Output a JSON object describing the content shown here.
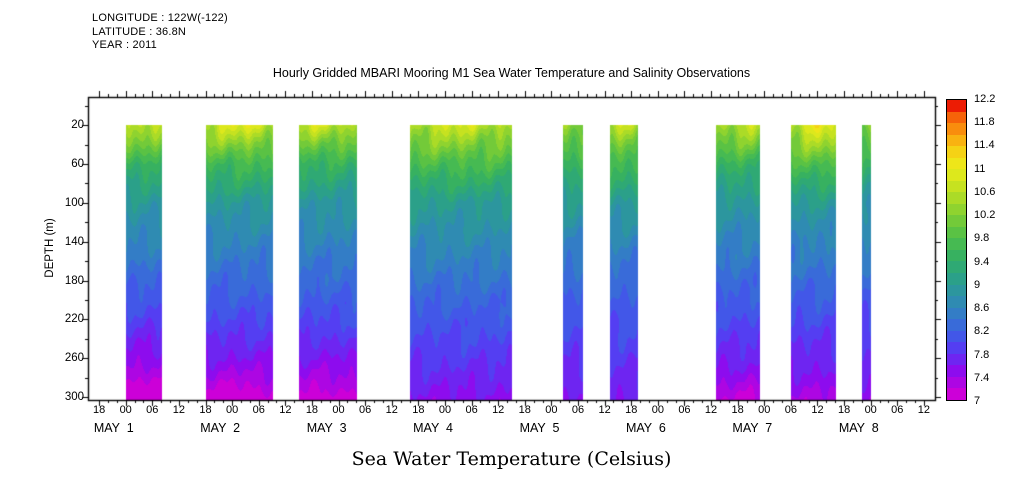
{
  "header": {
    "longitude": "LONGITUDE : 122W(-122)",
    "latitude": "LATITUDE : 36.8N",
    "year": "YEAR : 2011"
  },
  "title": "Hourly Gridded MBARI Mooring M1 Sea Water Temperature and Salinity Observations",
  "bottom_label": "Sea Water Temperature (Celsius)",
  "chart_data": {
    "type": "heatmap",
    "title": "Hourly Gridded MBARI Mooring M1 Sea Water Temperature and Salinity Observations",
    "variable": "Sea Water Temperature (Celsius)",
    "x_axis": {
      "unit": "hours since Apr 30 18:00, 2011",
      "hour_min": 0,
      "hour_max": 186,
      "major_tick_step_hours": 6,
      "minor_tick_step_hours": 2,
      "tick_labels": [
        "18",
        "00",
        "06",
        "12",
        "18",
        "00",
        "06",
        "12",
        "18",
        "00",
        "06",
        "12",
        "18",
        "00",
        "06",
        "12",
        "18",
        "00",
        "06",
        "12",
        "18",
        "00",
        "06",
        "12",
        "18",
        "00",
        "06",
        "12",
        "18",
        "00",
        "06",
        "12"
      ]
    },
    "day_labels": [
      {
        "text": "MAY  1",
        "hour": 6
      },
      {
        "text": "MAY  2",
        "hour": 30
      },
      {
        "text": "MAY  3",
        "hour": 54
      },
      {
        "text": "MAY  4",
        "hour": 78
      },
      {
        "text": "MAY  5",
        "hour": 102
      },
      {
        "text": "MAY  6",
        "hour": 126
      },
      {
        "text": "MAY  7",
        "hour": 150
      },
      {
        "text": "MAY  8",
        "hour": 174
      }
    ],
    "y_axis": {
      "label": "DEPTH (m)",
      "ticks": [
        20,
        60,
        100,
        140,
        180,
        220,
        260,
        300
      ],
      "minor_step": 20,
      "data_top_depth": 20,
      "data_bottom_depth": 303
    },
    "colorbar": {
      "min": 7.0,
      "max": 12.2,
      "step": 0.2,
      "labels": [
        "7",
        "7.4",
        "7.8",
        "8.2",
        "8.6",
        "9",
        "9.4",
        "9.8",
        "10.2",
        "10.6",
        "11",
        "11.4",
        "11.8",
        "12.2"
      ],
      "label_step": 0.4,
      "colors": [
        "#cc00d8",
        "#ad06e3",
        "#8d0cee",
        "#6e25f1",
        "#543ef2",
        "#4257e8",
        "#396bd9",
        "#337dc6",
        "#2f8bb2",
        "#2c969e",
        "#2ba089",
        "#2fa974",
        "#37b160",
        "#46ba52",
        "#5ac244",
        "#73ca39",
        "#8fd32f",
        "#abdb27",
        "#c6e220",
        "#dde81c",
        "#eee619",
        "#f5d215",
        "#f9b211",
        "#f98d0d",
        "#f66309",
        "#ec1c04"
      ]
    },
    "profile_depths": [
      20,
      60,
      100,
      140,
      180,
      220,
      260,
      300
    ],
    "segments": [
      {
        "start": 6,
        "end": 14,
        "temps": [
          10.4,
          9.5,
          8.9,
          8.6,
          8.25,
          7.9,
          7.5,
          7.05
        ],
        "bump": {
          "center": 10,
          "width": 4,
          "amp": 0.25
        },
        "deep": {
          "center": 10.5,
          "width": 3,
          "amp": -0.12
        }
      },
      {
        "start": 24,
        "end": 39,
        "temps": [
          10.6,
          9.6,
          8.95,
          8.6,
          8.3,
          8.0,
          7.6,
          7.1
        ],
        "bump": {
          "center": 32,
          "width": 5,
          "amp": 0.35
        },
        "deep": {
          "center": 31,
          "width": 4,
          "amp": -0.12
        }
      },
      {
        "start": 45,
        "end": 58,
        "temps": [
          10.5,
          9.45,
          8.9,
          8.6,
          8.3,
          8.0,
          7.6,
          7.15
        ],
        "bump": {
          "center": 50,
          "width": 4,
          "amp": 0.25
        },
        "deep": {
          "center": 51,
          "width": 3,
          "amp": -0.1
        }
      },
      {
        "start": 70,
        "end": 93,
        "temps": [
          10.5,
          9.7,
          9.0,
          8.7,
          8.4,
          8.1,
          7.85,
          7.55
        ],
        "bump": {
          "center": 80,
          "width": 6,
          "amp": 0.3
        },
        "deep": null
      },
      {
        "start": 104.5,
        "end": 109,
        "temps": [
          10.3,
          9.5,
          9.0,
          8.6,
          8.3,
          8.05,
          7.85,
          7.6
        ],
        "bump": null,
        "deep": null
      },
      {
        "start": 115,
        "end": 121.5,
        "temps": [
          10.45,
          9.6,
          9.0,
          8.6,
          8.3,
          8.05,
          7.85,
          7.6
        ],
        "bump": {
          "center": 118,
          "width": 3,
          "amp": 0.2
        },
        "deep": null
      },
      {
        "start": 139,
        "end": 149,
        "temps": [
          10.4,
          9.5,
          8.9,
          8.6,
          8.3,
          8.0,
          7.7,
          7.25
        ],
        "bump": {
          "center": 146,
          "width": 4,
          "amp": 0.25
        },
        "deep": {
          "center": 145,
          "width": 4,
          "amp": -0.08
        }
      },
      {
        "start": 156,
        "end": 166,
        "temps": [
          10.6,
          9.7,
          8.95,
          8.6,
          8.3,
          8.0,
          7.7,
          7.35
        ],
        "bump": {
          "center": 162,
          "width": 3.5,
          "amp": 0.6
        },
        "deep": null
      },
      {
        "start": 172,
        "end": 174,
        "temps": [
          10.2,
          9.4,
          8.9,
          8.6,
          8.3,
          8.0,
          7.75,
          7.5
        ],
        "bump": null,
        "deep": null
      }
    ]
  }
}
